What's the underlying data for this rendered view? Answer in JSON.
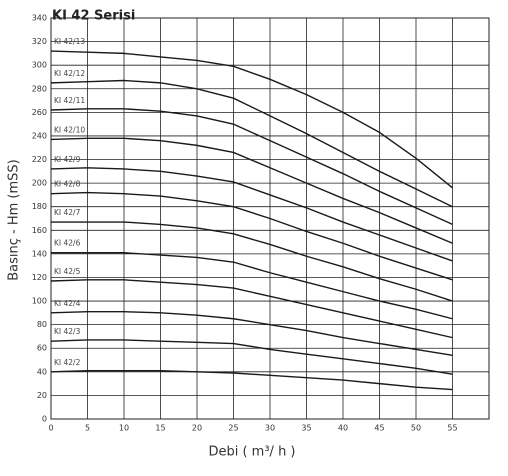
{
  "chart_data": {
    "type": "line",
    "title": "KI 42 Serisi",
    "x_label": "Debi ( m³/ h )",
    "y_label": "Basınç - Hm (mSS)",
    "x": [
      0,
      5,
      10,
      15,
      20,
      25,
      30,
      35,
      40,
      45,
      50,
      55
    ],
    "xlim": [
      0,
      60
    ],
    "xticks": [
      0,
      5,
      10,
      15,
      20,
      25,
      30,
      35,
      40,
      45,
      50,
      55
    ],
    "ylim": [
      0,
      340
    ],
    "yticks": [
      0,
      20,
      40,
      60,
      80,
      100,
      120,
      140,
      160,
      180,
      200,
      220,
      240,
      260,
      280,
      300,
      320,
      340
    ],
    "grid": true,
    "series": [
      {
        "name": "KI 42/13",
        "color": "#1a1a1a",
        "values": [
          312,
          311,
          310,
          307,
          304,
          299,
          288,
          275,
          260,
          243,
          221,
          196
        ]
      },
      {
        "name": "KI 42/12",
        "color": "#1a1a1a",
        "values": [
          285,
          286,
          287,
          285,
          280,
          272,
          257,
          242,
          226,
          210,
          195,
          180
        ]
      },
      {
        "name": "KI 42/11",
        "color": "#1a1a1a",
        "values": [
          262,
          263,
          263,
          261,
          257,
          250,
          236,
          222,
          208,
          193,
          179,
          165
        ]
      },
      {
        "name": "KI 42/10",
        "color": "#1a1a1a",
        "values": [
          237,
          238,
          238,
          236,
          232,
          226,
          213,
          200,
          187,
          175,
          162,
          149
        ]
      },
      {
        "name": "KI 42/9",
        "color": "#1a1a1a",
        "values": [
          212,
          213,
          212,
          210,
          206,
          201,
          190,
          179,
          167,
          156,
          145,
          134
        ]
      },
      {
        "name": "KI 42/8",
        "color": "#1a1a1a",
        "values": [
          191,
          192,
          191,
          189,
          185,
          180,
          170,
          159,
          149,
          138,
          128,
          118
        ]
      },
      {
        "name": "KI 42/7",
        "color": "#1a1a1a",
        "values": [
          167,
          167,
          167,
          165,
          162,
          157,
          148,
          138,
          129,
          119,
          110,
          100
        ]
      },
      {
        "name": "KI 42/6",
        "color": "#1a1a1a",
        "values": [
          141,
          141,
          141,
          139,
          137,
          133,
          124,
          116,
          108,
          100,
          93,
          85
        ]
      },
      {
        "name": "KI 42/5",
        "color": "#1a1a1a",
        "values": [
          117,
          118,
          118,
          116,
          114,
          111,
          104,
          97,
          90,
          83,
          76,
          69
        ]
      },
      {
        "name": "KI 42/4",
        "color": "#1a1a1a",
        "values": [
          90,
          91,
          91,
          90,
          88,
          85,
          80,
          75,
          69,
          64,
          59,
          54
        ]
      },
      {
        "name": "KI 42/3",
        "color": "#1a1a1a",
        "values": [
          66,
          67,
          67,
          66,
          65,
          64,
          59,
          55,
          51,
          47,
          43,
          38
        ]
      },
      {
        "name": "KI 42/2",
        "color": "#1a1a1a",
        "values": [
          40,
          41,
          41,
          41,
          40,
          39,
          37,
          35,
          33,
          30,
          27,
          25
        ]
      }
    ]
  }
}
